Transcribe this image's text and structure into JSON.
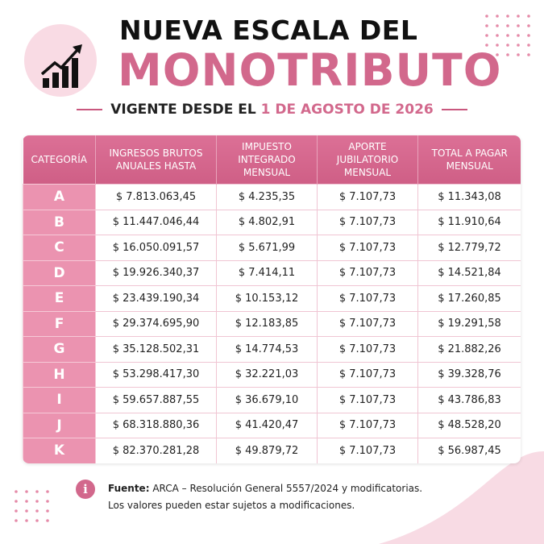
{
  "header": {
    "title_line1": "NUEVA ESCALA DEL",
    "title_line2": "MONOTRIBUTO",
    "subtitle_prefix": "VIGENTE DESDE EL",
    "subtitle_highlight": "1 DE AGOSTO DE 2026"
  },
  "table": {
    "columns": [
      "CATEGORÍA",
      "INGRESOS BRUTOS ANUALES HASTA",
      "IMPUESTO INTEGRADO MENSUAL",
      "APORTE JUBILATORIO MENSUAL",
      "TOTAL A PAGAR MENSUAL"
    ],
    "rows": [
      [
        "A",
        "$ 7.813.063,45",
        "$ 4.235,35",
        "$ 7.107,73",
        "$ 11.343,08"
      ],
      [
        "B",
        "$ 11.447.046,44",
        "$ 4.802,91",
        "$ 7.107,73",
        "$ 11.910,64"
      ],
      [
        "C",
        "$ 16.050.091,57",
        "$ 5.671,99",
        "$ 7.107,73",
        "$ 12.779,72"
      ],
      [
        "D",
        "$ 19.926.340,37",
        "$ 7.414,11",
        "$ 7.107,73",
        "$ 14.521,84"
      ],
      [
        "E",
        "$ 23.439.190,34",
        "$ 10.153,12",
        "$ 7.107,73",
        "$ 17.260,85"
      ],
      [
        "F",
        "$ 29.374.695,90",
        "$ 12.183,85",
        "$ 7.107,73",
        "$ 19.291,58"
      ],
      [
        "G",
        "$ 35.128.502,31",
        "$ 14.774,53",
        "$ 7.107,73",
        "$ 21.882,26"
      ],
      [
        "H",
        "$ 53.298.417,30",
        "$ 32.221,03",
        "$ 7.107,73",
        "$ 39.328,76"
      ],
      [
        "I",
        "$ 59.657.887,55",
        "$ 36.679,10",
        "$ 7.107,73",
        "$ 43.786,83"
      ],
      [
        "J",
        "$ 68.318.880,36",
        "$ 41.420,47",
        "$ 7.107,73",
        "$ 48.528,20"
      ],
      [
        "K",
        "$ 82.370.281,28",
        "$ 49.879,72",
        "$ 7.107,73",
        "$ 56.987,45"
      ]
    ]
  },
  "footer": {
    "source_label": "Fuente:",
    "source_text": "ARCA – Resolución General 5557/2024 y modificatorias.",
    "note": "Los valores pueden estar sujetos a modificaciones."
  }
}
